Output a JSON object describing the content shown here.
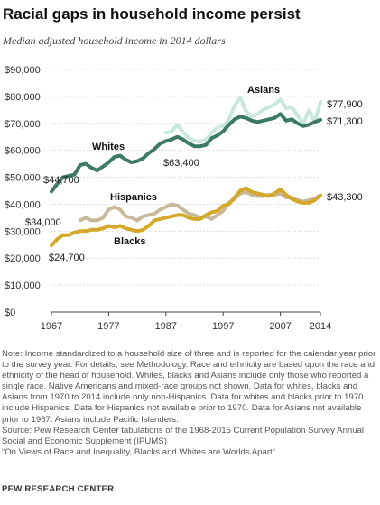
{
  "title": "Racial gaps in household income persist",
  "subtitle": "Median adjusted household income in 2014 dollars",
  "chart_data": {
    "type": "line",
    "ylim": [
      0,
      90000
    ],
    "y_ticks": [
      "$0",
      "$10,000",
      "$20,000",
      "$30,000",
      "$40,000",
      "$50,000",
      "$60,000",
      "$70,000",
      "$80,000",
      "$90,000"
    ],
    "x_ticks": [
      "1967",
      "1977",
      "1987",
      "1997",
      "2007",
      "2014"
    ],
    "grid": true,
    "series": [
      {
        "name": "Asians",
        "color": "#c9e8dc",
        "x": [
          1987,
          1988,
          1989,
          1990,
          1991,
          1992,
          1993,
          1994,
          1995,
          1996,
          1997,
          1998,
          1999,
          2000,
          2001,
          2002,
          2003,
          2004,
          2005,
          2006,
          2007,
          2008,
          2009,
          2010,
          2011,
          2012,
          2013,
          2014
        ],
        "values": [
          66500,
          67000,
          69500,
          66800,
          64500,
          63500,
          63200,
          64000,
          66500,
          68500,
          69000,
          71500,
          76500,
          79600,
          74500,
          72500,
          73500,
          75000,
          76000,
          77000,
          79000,
          75500,
          76000,
          73000,
          70000,
          75000,
          70500,
          77900
        ]
      },
      {
        "name": "Whites",
        "color": "#3d7a63",
        "x": [
          1967,
          1968,
          1969,
          1970,
          1971,
          1972,
          1973,
          1974,
          1975,
          1976,
          1977,
          1978,
          1979,
          1980,
          1981,
          1982,
          1983,
          1984,
          1985,
          1986,
          1987,
          1988,
          1989,
          1990,
          1991,
          1992,
          1993,
          1994,
          1995,
          1996,
          1997,
          1998,
          1999,
          2000,
          2001,
          2002,
          2003,
          2004,
          2005,
          2006,
          2007,
          2008,
          2009,
          2010,
          2011,
          2012,
          2013,
          2014
        ],
        "values": [
          44700,
          47500,
          50000,
          50500,
          51000,
          54500,
          55000,
          53500,
          52500,
          54000,
          55500,
          57500,
          58000,
          56500,
          55500,
          56000,
          57000,
          59000,
          60500,
          62500,
          63400,
          64000,
          65000,
          64000,
          62500,
          61500,
          61500,
          62000,
          64500,
          65500,
          67000,
          69500,
          71500,
          72500,
          72000,
          71000,
          70500,
          71000,
          71500,
          72000,
          73500,
          71000,
          71500,
          70000,
          69000,
          69500,
          70500,
          71300
        ]
      },
      {
        "name": "Hispanics",
        "color": "#c9b99b",
        "x": [
          1972,
          1973,
          1974,
          1975,
          1976,
          1977,
          1978,
          1979,
          1980,
          1981,
          1982,
          1983,
          1984,
          1985,
          1986,
          1987,
          1988,
          1989,
          1990,
          1991,
          1992,
          1993,
          1994,
          1995,
          1996,
          1997,
          1998,
          1999,
          2000,
          2001,
          2002,
          2003,
          2004,
          2005,
          2006,
          2007,
          2008,
          2009,
          2010,
          2011,
          2012,
          2013,
          2014
        ],
        "values": [
          34000,
          35000,
          34000,
          34000,
          35000,
          38000,
          39000,
          38000,
          35500,
          35000,
          34000,
          35500,
          36000,
          36500,
          38000,
          39000,
          40000,
          39500,
          38000,
          36500,
          36000,
          35000,
          35500,
          34500,
          36000,
          37500,
          40500,
          42000,
          44000,
          44500,
          43500,
          43000,
          43000,
          43500,
          43500,
          44000,
          42500,
          42500,
          41500,
          41000,
          41500,
          42000,
          43300
        ]
      },
      {
        "name": "Blacks",
        "color": "#d4a82a",
        "x": [
          1967,
          1968,
          1969,
          1970,
          1971,
          1972,
          1973,
          1974,
          1975,
          1976,
          1977,
          1978,
          1979,
          1980,
          1981,
          1982,
          1983,
          1984,
          1985,
          1986,
          1987,
          1988,
          1989,
          1990,
          1991,
          1992,
          1993,
          1994,
          1995,
          1996,
          1997,
          1998,
          1999,
          2000,
          2001,
          2002,
          2003,
          2004,
          2005,
          2006,
          2007,
          2008,
          2009,
          2010,
          2011,
          2012,
          2013,
          2014
        ],
        "values": [
          24700,
          27000,
          28500,
          28500,
          29500,
          30000,
          30000,
          30500,
          30500,
          31000,
          32000,
          31500,
          32000,
          31000,
          30500,
          30000,
          30500,
          32000,
          34000,
          34500,
          35000,
          35500,
          36000,
          36000,
          35000,
          34500,
          34500,
          36000,
          37000,
          37500,
          39500,
          40000,
          42500,
          45000,
          46000,
          44500,
          44000,
          43500,
          43000,
          44000,
          45500,
          43500,
          42000,
          41000,
          40500,
          40500,
          41500,
          43300
        ]
      }
    ],
    "annotations": {
      "whites_start": "$44,700",
      "hispanics_start": "$34,000",
      "blacks_start": "$24,700",
      "whites_1987": "$63,400",
      "asians_end": "$77,900",
      "whites_end": "$71,300",
      "hisp_black_end": "$43,300"
    }
  },
  "notes": [
    "Note: Income standardized to a household size of three and is reported for the calendar year prior to the survey year. For details, see Methodology. Race and ethnicity are based upon the race and ethnicity of the head of household. Whites, blacks and Asians include only those who reported a single race. Native Americans and mixed-race groups not shown. Data for whites, blacks and Asians from 1970 to 2014  include only non-Hispanics. Data for whites and blacks prior to 1970 include Hispanics. Data for Hispanics not available prior to 1970. Data for Asians not available prior to 1987. Asians include Pacific Islanders.",
    "Source: Pew Research Center tabulations of the 1968-2015 Current Population Survey Annual Social and Economic Supplement (IPUMS)",
    "“On Views of Race and Inequality, Blacks and Whites are Worlds Apart”"
  ],
  "org": "PEW RESEARCH CENTER"
}
